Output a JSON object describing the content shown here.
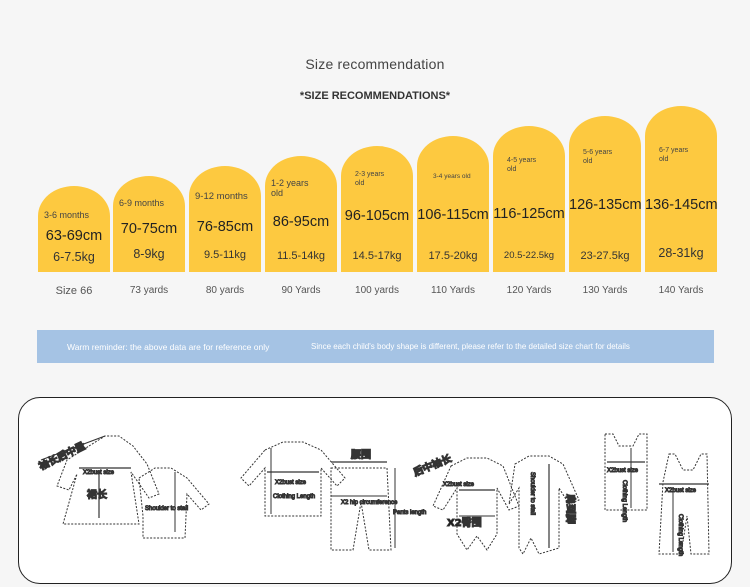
{
  "title": "Size recommendation",
  "subtitle": "*SIZE RECOMMENDATIONS*",
  "sizes": [
    {
      "age": "3-6 months",
      "cm": "63-69cm",
      "kg": "6-7.5kg",
      "yards": "Size 66"
    },
    {
      "age": "6-9 months",
      "cm": "70-75cm",
      "kg": "8-9kg",
      "yards": "73 yards"
    },
    {
      "age": "9-12 months",
      "cm": "76-85cm",
      "kg": "9.5-11kg",
      "yards": "80 yards"
    },
    {
      "age": "1-2 years old",
      "cm": "86-95cm",
      "kg": "11.5-14kg",
      "yards": "90 Yards"
    },
    {
      "age": "2-3 years old",
      "cm": "96-105cm",
      "kg": "14.5-17kg",
      "yards": "100 yards"
    },
    {
      "age": "3-4 years old",
      "cm": "106-115cm",
      "kg": "17.5-20kg",
      "yards": "110 Yards"
    },
    {
      "age": "4-5 years old",
      "cm": "116-125cm",
      "kg": "20.5-22.5kg",
      "yards": "120 Yards"
    },
    {
      "age": "5-6 years old",
      "cm": "126-135cm",
      "kg": "23-27.5kg",
      "yards": "130 Yards"
    },
    {
      "age": "6-7 years old",
      "cm": "136-145cm",
      "kg": "28-31kg",
      "yards": "140 Yards"
    }
  ],
  "reminder": {
    "left": "Warm reminder: the above data are for reference only",
    "right": "Since each child's body shape is different, please refer to the detailed size chart for details"
  },
  "diagram": {
    "sleeve_back_cn": "袖长后中量",
    "bust": "X2bust size",
    "skirt_length_cn": "裙长",
    "shoulder_to_stall": "Shoulder to stall",
    "bust2": "X2bust size",
    "clothing_length": "Clothing Length",
    "waist_cn": "腰围",
    "hip": "X2 hip circumference",
    "pants_length": "Pants length",
    "back_sleeve_cn": "后中袖长",
    "bust3": "X2bust size",
    "hip_cn": "X2臀围",
    "shoulder_to_stall2": "Shoulder to stall",
    "shoulder_foot_cn": "肩到脚",
    "bust4": "X2bust size",
    "clothing_length2": "Clothing Length",
    "bust5": "X2bust size",
    "clothing_length3": "Clothing Length"
  },
  "colors": {
    "bar": "#fdc940",
    "banner": "#a5c3e4"
  }
}
